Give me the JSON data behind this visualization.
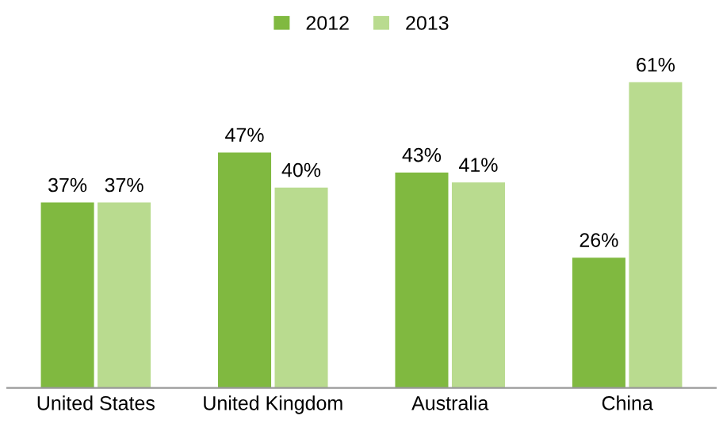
{
  "chart_data": {
    "type": "bar",
    "categories": [
      "United States",
      "United Kingdom",
      "Australia",
      "China"
    ],
    "series": [
      {
        "name": "2012",
        "color": "#80b940",
        "values": [
          37,
          47,
          43,
          26
        ],
        "value_labels": [
          "37%",
          "47%",
          "43%",
          "26%"
        ]
      },
      {
        "name": "2013",
        "color": "#b9db8f",
        "values": [
          37,
          40,
          41,
          61
        ],
        "value_labels": [
          "37%",
          "40%",
          "41%",
          "61%"
        ]
      }
    ],
    "legend": "top",
    "grid": false
  }
}
